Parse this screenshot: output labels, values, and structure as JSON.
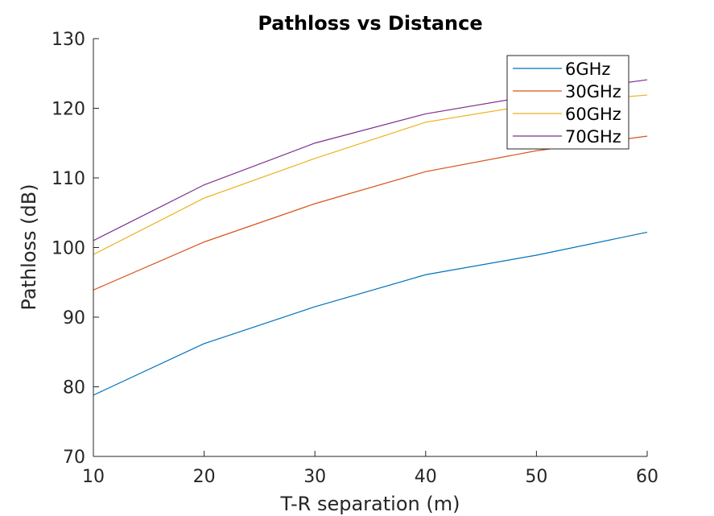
{
  "chart_data": {
    "type": "line",
    "title": "Pathloss vs Distance",
    "xlabel": "T-R separation (m)",
    "ylabel": "Pathloss (dB)",
    "xlim": [
      10,
      60
    ],
    "ylim": [
      70,
      130
    ],
    "xticks": [
      10,
      20,
      30,
      40,
      50,
      60
    ],
    "yticks": [
      70,
      80,
      90,
      100,
      110,
      120,
      130
    ],
    "grid": false,
    "legend_position": "top-right",
    "x": [
      10,
      20,
      30,
      40,
      50,
      60
    ],
    "series": [
      {
        "name": "6GHz",
        "color": "#0072BD",
        "values": [
          78.8,
          86.2,
          91.5,
          96.1,
          98.9,
          102.2
        ]
      },
      {
        "name": "30GHz",
        "color": "#D95319",
        "values": [
          93.9,
          100.8,
          106.3,
          110.9,
          113.9,
          116.0
        ]
      },
      {
        "name": "60GHz",
        "color": "#EDB120",
        "values": [
          99.0,
          107.1,
          112.8,
          118.0,
          120.6,
          121.9
        ]
      },
      {
        "name": "70GHz",
        "color": "#7E2F8E",
        "values": [
          101.0,
          109.0,
          115.0,
          119.2,
          121.9,
          124.1
        ]
      }
    ]
  }
}
